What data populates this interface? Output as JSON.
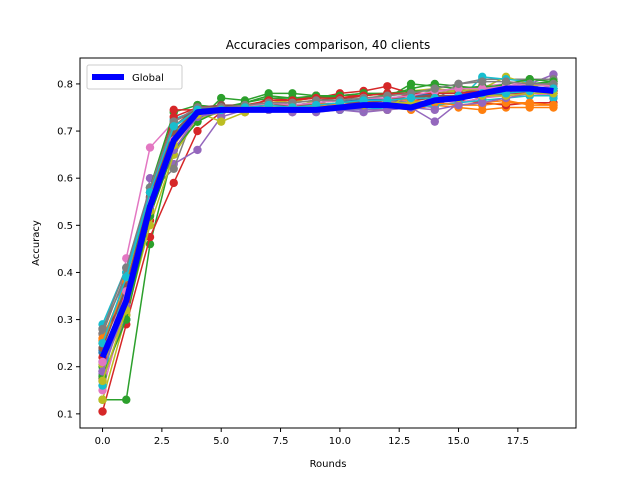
{
  "chart_data": {
    "type": "line",
    "title": "Accuracies comparison, 40 clients",
    "xlabel": "Rounds",
    "ylabel": "Accuracy",
    "xlim": [
      -0.95,
      19.95
    ],
    "ylim": [
      0.07,
      0.855
    ],
    "x_ticks": [
      0.0,
      2.5,
      5.0,
      7.5,
      10.0,
      12.5,
      15.0,
      17.5
    ],
    "x_tick_labels": [
      "0.0",
      "2.5",
      "5.0",
      "7.5",
      "10.0",
      "12.5",
      "15.0",
      "17.5"
    ],
    "y_ticks": [
      0.1,
      0.2,
      0.3,
      0.4,
      0.5,
      0.6,
      0.7,
      0.8
    ],
    "y_tick_labels": [
      "0.1",
      "0.2",
      "0.3",
      "0.4",
      "0.5",
      "0.6",
      "0.7",
      "0.8"
    ],
    "legend_position": "upper-left",
    "x": [
      0,
      1,
      2,
      3,
      4,
      5,
      6,
      7,
      8,
      9,
      10,
      11,
      12,
      13,
      14,
      15,
      16,
      17,
      18,
      19
    ],
    "global_series": {
      "name": "Global",
      "color": "#0000ff",
      "values": [
        0.22,
        0.34,
        0.54,
        0.68,
        0.74,
        0.745,
        0.745,
        0.745,
        0.745,
        0.745,
        0.75,
        0.755,
        0.755,
        0.75,
        0.765,
        0.77,
        0.78,
        0.79,
        0.79,
        0.785
      ]
    },
    "client_colors": [
      "#1f77b4",
      "#ff7f0e",
      "#2ca02c",
      "#d62728",
      "#9467bd",
      "#8c564b",
      "#e377c2",
      "#7f7f7f",
      "#bcbd22",
      "#17becf"
    ],
    "client_series": [
      {
        "values": [
          0.21,
          0.32,
          0.55,
          0.7,
          0.74,
          0.75,
          0.745,
          0.75,
          0.745,
          0.75,
          0.755,
          0.75,
          0.76,
          0.755,
          0.77,
          0.775,
          0.785,
          0.79,
          0.795,
          0.785
        ]
      },
      {
        "values": [
          0.25,
          0.36,
          0.52,
          0.66,
          0.73,
          0.74,
          0.74,
          0.75,
          0.745,
          0.745,
          0.75,
          0.755,
          0.75,
          0.745,
          0.755,
          0.75,
          0.745,
          0.75,
          0.75,
          0.75
        ]
      },
      {
        "values": [
          0.13,
          0.13,
          0.46,
          0.66,
          0.72,
          0.77,
          0.765,
          0.78,
          0.78,
          0.775,
          0.77,
          0.765,
          0.77,
          0.8,
          0.795,
          0.79,
          0.78,
          0.785,
          0.8,
          0.805
        ]
      },
      {
        "values": [
          0.105,
          0.29,
          0.475,
          0.59,
          0.7,
          0.74,
          0.745,
          0.77,
          0.765,
          0.77,
          0.78,
          0.785,
          0.795,
          0.78,
          0.77,
          0.765,
          0.76,
          0.755,
          0.76,
          0.76
        ]
      },
      {
        "values": [
          0.17,
          0.31,
          0.6,
          0.63,
          0.66,
          0.73,
          0.745,
          0.745,
          0.74,
          0.74,
          0.745,
          0.74,
          0.745,
          0.75,
          0.72,
          0.76,
          0.77,
          0.78,
          0.8,
          0.82
        ]
      },
      {
        "values": [
          0.19,
          0.35,
          0.56,
          0.72,
          0.745,
          0.75,
          0.755,
          0.76,
          0.755,
          0.76,
          0.765,
          0.76,
          0.765,
          0.765,
          0.77,
          0.775,
          0.77,
          0.78,
          0.78,
          0.78
        ]
      },
      {
        "values": [
          0.16,
          0.43,
          0.665,
          0.72,
          0.75,
          0.745,
          0.74,
          0.745,
          0.745,
          0.745,
          0.75,
          0.75,
          0.76,
          0.765,
          0.78,
          0.79,
          0.795,
          0.8,
          0.8,
          0.8
        ]
      },
      {
        "values": [
          0.28,
          0.39,
          0.57,
          0.62,
          0.755,
          0.745,
          0.75,
          0.76,
          0.755,
          0.75,
          0.76,
          0.76,
          0.765,
          0.76,
          0.765,
          0.8,
          0.81,
          0.81,
          0.81,
          0.81
        ]
      },
      {
        "values": [
          0.13,
          0.31,
          0.53,
          0.695,
          0.74,
          0.72,
          0.74,
          0.745,
          0.745,
          0.745,
          0.75,
          0.745,
          0.745,
          0.785,
          0.79,
          0.785,
          0.79,
          0.815,
          0.8,
          0.795
        ]
      },
      {
        "values": [
          0.29,
          0.41,
          0.57,
          0.725,
          0.745,
          0.745,
          0.745,
          0.745,
          0.745,
          0.745,
          0.745,
          0.75,
          0.75,
          0.755,
          0.76,
          0.765,
          0.815,
          0.81,
          0.805,
          0.77
        ]
      },
      {
        "values": [
          0.235,
          0.3,
          0.535,
          0.69,
          0.75,
          0.745,
          0.75,
          0.755,
          0.75,
          0.755,
          0.76,
          0.76,
          0.755,
          0.76,
          0.765,
          0.77,
          0.775,
          0.785,
          0.785,
          0.79
        ]
      },
      {
        "values": [
          0.255,
          0.37,
          0.58,
          0.68,
          0.74,
          0.745,
          0.745,
          0.755,
          0.75,
          0.76,
          0.755,
          0.76,
          0.77,
          0.765,
          0.76,
          0.755,
          0.76,
          0.765,
          0.755,
          0.755
        ]
      },
      {
        "values": [
          0.2,
          0.36,
          0.58,
          0.74,
          0.755,
          0.75,
          0.76,
          0.775,
          0.77,
          0.77,
          0.775,
          0.78,
          0.775,
          0.79,
          0.8,
          0.795,
          0.79,
          0.8,
          0.81,
          0.805
        ]
      },
      {
        "values": [
          0.27,
          0.345,
          0.51,
          0.745,
          0.745,
          0.75,
          0.75,
          0.76,
          0.765,
          0.775,
          0.775,
          0.775,
          0.78,
          0.775,
          0.775,
          0.775,
          0.78,
          0.78,
          0.78,
          0.78
        ]
      },
      {
        "values": [
          0.185,
          0.335,
          0.545,
          0.65,
          0.74,
          0.745,
          0.745,
          0.75,
          0.745,
          0.745,
          0.755,
          0.745,
          0.75,
          0.755,
          0.75,
          0.78,
          0.78,
          0.79,
          0.79,
          0.795
        ]
      },
      {
        "values": [
          0.175,
          0.38,
          0.54,
          0.71,
          0.75,
          0.755,
          0.755,
          0.76,
          0.76,
          0.765,
          0.77,
          0.77,
          0.77,
          0.77,
          0.78,
          0.785,
          0.785,
          0.79,
          0.79,
          0.79
        ]
      },
      {
        "values": [
          0.15,
          0.33,
          0.52,
          0.67,
          0.73,
          0.745,
          0.75,
          0.745,
          0.75,
          0.755,
          0.75,
          0.755,
          0.76,
          0.76,
          0.765,
          0.76,
          0.77,
          0.775,
          0.78,
          0.775
        ]
      },
      {
        "values": [
          0.27,
          0.4,
          0.56,
          0.7,
          0.745,
          0.745,
          0.745,
          0.75,
          0.745,
          0.75,
          0.755,
          0.755,
          0.76,
          0.76,
          0.765,
          0.77,
          0.775,
          0.78,
          0.785,
          0.78
        ]
      },
      {
        "values": [
          0.205,
          0.31,
          0.5,
          0.65,
          0.725,
          0.74,
          0.75,
          0.76,
          0.765,
          0.76,
          0.765,
          0.77,
          0.775,
          0.78,
          0.78,
          0.785,
          0.79,
          0.79,
          0.795,
          0.8
        ]
      },
      {
        "values": [
          0.16,
          0.4,
          0.58,
          0.71,
          0.74,
          0.745,
          0.745,
          0.745,
          0.745,
          0.745,
          0.745,
          0.745,
          0.75,
          0.75,
          0.755,
          0.76,
          0.765,
          0.77,
          0.775,
          0.775
        ]
      },
      {
        "values": [
          0.23,
          0.35,
          0.55,
          0.69,
          0.745,
          0.75,
          0.75,
          0.755,
          0.755,
          0.76,
          0.765,
          0.765,
          0.77,
          0.775,
          0.78,
          0.78,
          0.785,
          0.79,
          0.79,
          0.79
        ]
      },
      {
        "values": [
          0.26,
          0.38,
          0.53,
          0.68,
          0.735,
          0.745,
          0.745,
          0.75,
          0.75,
          0.755,
          0.75,
          0.755,
          0.755,
          0.76,
          0.76,
          0.755,
          0.755,
          0.76,
          0.76,
          0.755
        ]
      },
      {
        "values": [
          0.18,
          0.3,
          0.52,
          0.66,
          0.72,
          0.745,
          0.76,
          0.77,
          0.77,
          0.775,
          0.775,
          0.78,
          0.78,
          0.785,
          0.785,
          0.79,
          0.795,
          0.795,
          0.8,
          0.8
        ]
      },
      {
        "values": [
          0.22,
          0.34,
          0.57,
          0.73,
          0.75,
          0.75,
          0.755,
          0.765,
          0.765,
          0.77,
          0.77,
          0.775,
          0.78,
          0.78,
          0.78,
          0.78,
          0.785,
          0.785,
          0.785,
          0.785
        ]
      },
      {
        "values": [
          0.19,
          0.33,
          0.54,
          0.66,
          0.73,
          0.74,
          0.745,
          0.745,
          0.74,
          0.745,
          0.745,
          0.745,
          0.745,
          0.75,
          0.745,
          0.755,
          0.76,
          0.77,
          0.78,
          0.78
        ]
      },
      {
        "values": [
          0.24,
          0.37,
          0.56,
          0.7,
          0.745,
          0.745,
          0.75,
          0.755,
          0.755,
          0.755,
          0.76,
          0.76,
          0.765,
          0.77,
          0.775,
          0.775,
          0.78,
          0.78,
          0.785,
          0.785
        ]
      },
      {
        "values": [
          0.21,
          0.36,
          0.55,
          0.68,
          0.74,
          0.75,
          0.75,
          0.76,
          0.755,
          0.76,
          0.765,
          0.77,
          0.77,
          0.775,
          0.785,
          0.79,
          0.79,
          0.795,
          0.8,
          0.795
        ]
      },
      {
        "values": [
          0.28,
          0.41,
          0.58,
          0.72,
          0.75,
          0.75,
          0.755,
          0.76,
          0.76,
          0.765,
          0.765,
          0.77,
          0.775,
          0.78,
          0.79,
          0.8,
          0.805,
          0.805,
          0.8,
          0.8
        ]
      },
      {
        "values": [
          0.17,
          0.32,
          0.53,
          0.67,
          0.735,
          0.745,
          0.745,
          0.75,
          0.75,
          0.75,
          0.755,
          0.755,
          0.76,
          0.76,
          0.765,
          0.77,
          0.775,
          0.775,
          0.78,
          0.78
        ]
      },
      {
        "values": [
          0.25,
          0.39,
          0.57,
          0.71,
          0.745,
          0.745,
          0.75,
          0.755,
          0.75,
          0.755,
          0.76,
          0.765,
          0.765,
          0.77,
          0.77,
          0.775,
          0.78,
          0.78,
          0.785,
          0.79
        ]
      }
    ]
  }
}
